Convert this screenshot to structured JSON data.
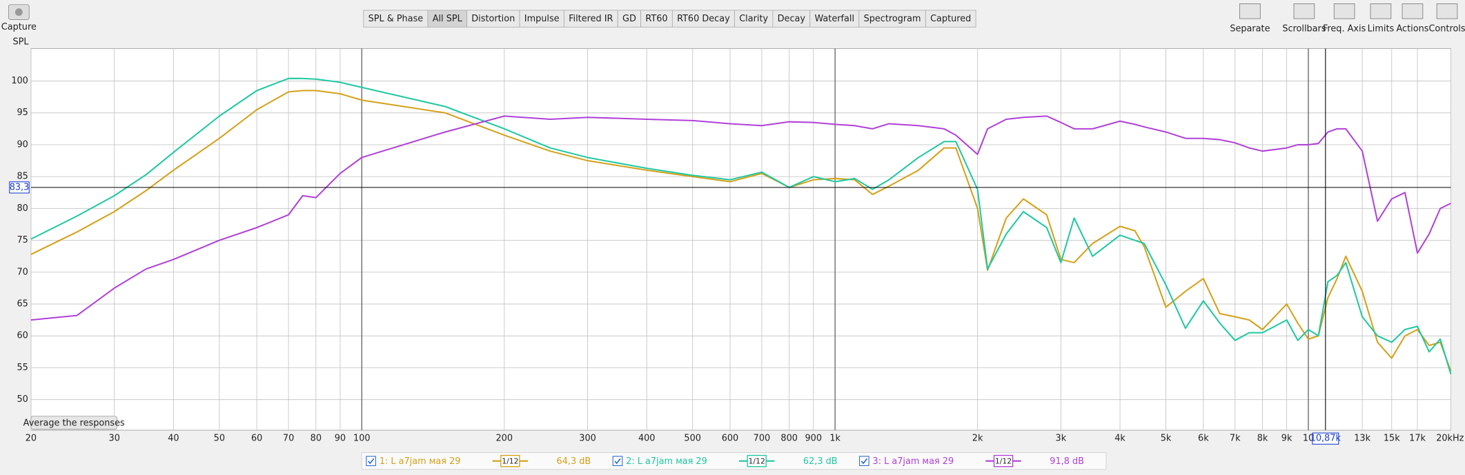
{
  "ui": {
    "capture": "Capture",
    "tabs": [
      "SPL & Phase",
      "All SPL",
      "Distortion",
      "Impulse",
      "Filtered IR",
      "GD",
      "RT60",
      "RT60 Decay",
      "Clarity",
      "Decay",
      "Waterfall",
      "Spectrogram",
      "Captured"
    ],
    "selected_tab": "All SPL",
    "tools": [
      "Separate",
      "Scrollbars",
      "Freq. Axis",
      "Limits",
      "Actions",
      "Controls"
    ],
    "average_button": "Average the responses"
  },
  "chart_data": {
    "type": "line",
    "y_label": "SPL",
    "x_scale": "log",
    "grid": true,
    "xlim": [
      20,
      20000
    ],
    "ylim": [
      45.2,
      105.1
    ],
    "yticks": [
      50,
      55,
      60,
      65,
      70,
      75,
      80,
      85,
      90,
      95,
      100
    ],
    "xticks": [
      20,
      30,
      40,
      50,
      60,
      70,
      80,
      90,
      100,
      200,
      300,
      400,
      500,
      600,
      700,
      800,
      900,
      {
        "value": 1000,
        "label": "1k"
      },
      {
        "value": 2000,
        "label": "2k"
      },
      {
        "value": 3000,
        "label": "3k"
      },
      {
        "value": 4000,
        "label": "4k"
      },
      {
        "value": 5000,
        "label": "5k"
      },
      {
        "value": 6000,
        "label": "6k"
      },
      {
        "value": 7000,
        "label": "7k"
      },
      {
        "value": 8000,
        "label": "8k"
      },
      {
        "value": 9000,
        "label": "9k"
      },
      {
        "value": 10000,
        "label": "10"
      },
      {
        "value": 13000,
        "label": "13k"
      },
      {
        "value": 15000,
        "label": "15k"
      },
      {
        "value": 17000,
        "label": "17k"
      },
      {
        "value": 20000,
        "label": "20kHz"
      }
    ],
    "cursor": {
      "x": 10870,
      "y": 83.3,
      "x_label": "10,87k",
      "y_label": "83,3"
    },
    "x": [
      20,
      25,
      30,
      35,
      40,
      50,
      60,
      70,
      75,
      80,
      90,
      100,
      150,
      200,
      250,
      300,
      400,
      500,
      600,
      700,
      800,
      900,
      1000,
      1100,
      1200,
      1300,
      1500,
      1700,
      1800,
      2000,
      2100,
      2300,
      2500,
      2800,
      3000,
      3200,
      3500,
      4000,
      4300,
      4500,
      5000,
      5500,
      6000,
      6500,
      7000,
      7500,
      8000,
      9000,
      9500,
      10000,
      10500,
      11000,
      11500,
      12000,
      13000,
      14000,
      15000,
      16000,
      17000,
      18000,
      19000,
      20000
    ],
    "series": [
      {
        "name": "1: L a7jam мая 29",
        "color": "#d4a017",
        "smoothing": "1/12",
        "level_label": "64,3 dB",
        "values": [
          72.8,
          76.3,
          79.5,
          82.8,
          86,
          91,
          95.5,
          98.3,
          98.5,
          98.5,
          98,
          97,
          95,
          91.5,
          89,
          87.5,
          86,
          85,
          84.2,
          85.5,
          83.3,
          84.5,
          84.7,
          84.5,
          82.2,
          83.5,
          86,
          89.5,
          89.5,
          80,
          70.3,
          78.5,
          81.5,
          79,
          72,
          71.5,
          74.5,
          77.2,
          76.5,
          74,
          64.5,
          67,
          69,
          63.5,
          63,
          62.5,
          61,
          65,
          62,
          59.5,
          60,
          66,
          69,
          72.5,
          67,
          59,
          56.5,
          60,
          61,
          58.5,
          59,
          54.5
        ]
      },
      {
        "name": "2: L a7jam мая 29",
        "color": "#1ec8a0",
        "smoothing": "1/12",
        "level_label": "62,3 dB",
        "values": [
          75.2,
          78.8,
          82,
          85.3,
          88.8,
          94.5,
          98.5,
          100.4,
          100.4,
          100.3,
          99.8,
          99,
          96,
          92.5,
          89.5,
          88,
          86.3,
          85.2,
          84.5,
          85.7,
          83.3,
          85,
          84.2,
          84.7,
          83,
          84.5,
          88,
          90.5,
          90.5,
          83,
          70.5,
          76,
          79.5,
          77,
          71.5,
          78.5,
          72.5,
          75.8,
          75,
          74.5,
          68,
          61.2,
          65.5,
          62,
          59.3,
          60.5,
          60.5,
          62.5,
          59.3,
          61,
          60,
          68.5,
          69.5,
          71.5,
          63,
          60,
          59,
          61,
          61.5,
          57.5,
          59.5,
          54
        ]
      },
      {
        "name": "3: L a7jam мая 29",
        "color": "#b040d8",
        "smoothing": "1/12",
        "level_label": "91,8 dB",
        "values": [
          62.5,
          63.2,
          67.5,
          70.5,
          72,
          75,
          77,
          79,
          82,
          81.7,
          85.5,
          88,
          92,
          94.5,
          94,
          94.3,
          94,
          93.8,
          93.3,
          93,
          93.6,
          93.5,
          93.2,
          93,
          92.5,
          93.3,
          93,
          92.5,
          91.5,
          88.5,
          92.5,
          94,
          94.3,
          94.5,
          93.5,
          92.5,
          92.5,
          93.7,
          93.2,
          92.8,
          92,
          91,
          91,
          90.8,
          90.3,
          89.5,
          89,
          89.5,
          90,
          90,
          90.2,
          92,
          92.5,
          92.5,
          89,
          78,
          81.5,
          82.5,
          73,
          76,
          80,
          80.8
        ]
      }
    ]
  }
}
